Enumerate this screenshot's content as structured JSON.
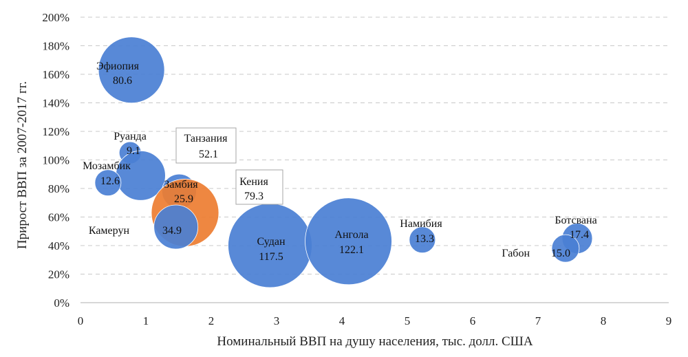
{
  "chart_data": {
    "type": "bubble",
    "xlabel": "Номинальный ВВП на душу населения, тыс. долл. США",
    "ylabel": "Прирост ВВП за 2007-2017 гг.",
    "xlim": [
      0,
      9
    ],
    "ylim": [
      0,
      2.0
    ],
    "x_ticks": [
      "0",
      "1",
      "2",
      "3",
      "4",
      "5",
      "6",
      "7",
      "8",
      "9"
    ],
    "y_ticks": [
      "0%",
      "20%",
      "40%",
      "60%",
      "80%",
      "100%",
      "120%",
      "140%",
      "160%",
      "180%",
      "200%"
    ],
    "grid": "horizontal-dashed",
    "colors": {
      "default": "#4a7fd4",
      "highlight": "#ed7d31",
      "grid": "#c8c8c8",
      "axis": "#bfbfbf"
    },
    "points": [
      {
        "country": "Эфиопия",
        "value": "80.6",
        "x": 0.78,
        "y": 1.63
      },
      {
        "country": "Руанда",
        "value": "9.1",
        "x": 0.76,
        "y": 1.05
      },
      {
        "country": "Танзания",
        "value": "52.1",
        "x": 0.92,
        "y": 0.89,
        "boxed_label": true
      },
      {
        "country": "Мозамбик",
        "value": "12.6",
        "x": 0.42,
        "y": 0.84
      },
      {
        "country": "Замбия",
        "value": "25.9",
        "x": 1.51,
        "y": 0.78
      },
      {
        "country": "Кения",
        "value": "79.3",
        "x": 1.6,
        "y": 0.63,
        "highlight": true,
        "boxed_label": true
      },
      {
        "country": "Камерун",
        "value": "34.9",
        "x": 1.46,
        "y": 0.53
      },
      {
        "country": "Судан",
        "value": "117.5",
        "x": 2.9,
        "y": 0.4
      },
      {
        "country": "Ангола",
        "value": "122.1",
        "x": 4.1,
        "y": 0.43
      },
      {
        "country": "Намибия",
        "value": "13.3",
        "x": 5.23,
        "y": 0.44
      },
      {
        "country": "Ботсвана",
        "value": "17.4",
        "x": 7.6,
        "y": 0.45
      },
      {
        "country": "Габон",
        "value": "15.0",
        "x": 7.42,
        "y": 0.38
      }
    ]
  }
}
